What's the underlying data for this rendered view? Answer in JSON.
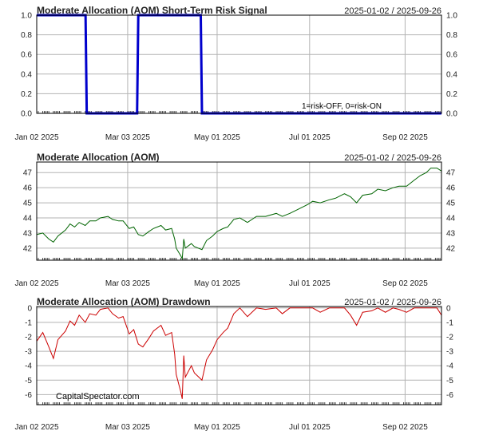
{
  "chart_data": [
    {
      "type": "line",
      "title": "Moderate Allocation (AOM) Short-Term Risk Signal",
      "date_range": "2025-01-02 / 2025-09-26",
      "ylim": [
        0,
        1
      ],
      "y_ticks": [
        0,
        0.2,
        0.4,
        0.6,
        0.8,
        1
      ],
      "y_tick_labels": [
        "0.0",
        "0.2",
        "0.4",
        "0.6",
        "0.8",
        "1.0"
      ],
      "x_tick_labels": [
        "Jan 02 2025",
        "Mar 03 2025",
        "May 01 2025",
        "Jul 01 2025",
        "Sep 02 2025"
      ],
      "x_ticks": [
        "2025-01-02",
        "2025-03-03",
        "2025-05-01",
        "2025-07-01",
        "2025-09-02"
      ],
      "x_range": [
        "2025-01-02",
        "2025-09-26"
      ],
      "annotation": "1=risk-OFF, 0=risk-ON",
      "grid": true,
      "series": [
        {
          "color": "#0000cc",
          "step": true,
          "points": [
            [
              "2025-01-02",
              1
            ],
            [
              "2025-02-04",
              0
            ],
            [
              "2025-03-10",
              1
            ],
            [
              "2025-04-21",
              0
            ],
            [
              "2025-09-26",
              0
            ]
          ]
        }
      ]
    },
    {
      "type": "line",
      "title": "Moderate Allocation (AOM)",
      "date_range": "2025-01-02 / 2025-09-26",
      "ylim": [
        41.2,
        47.7
      ],
      "y_ticks": [
        42,
        43,
        44,
        45,
        46,
        47
      ],
      "y_tick_labels": [
        "42",
        "43",
        "44",
        "45",
        "46",
        "47"
      ],
      "x_tick_labels": [
        "Jan 02 2025",
        "Mar 03 2025",
        "May 01 2025",
        "Jul 01 2025",
        "Sep 02 2025"
      ],
      "x_ticks": [
        "2025-01-02",
        "2025-03-03",
        "2025-05-01",
        "2025-07-01",
        "2025-09-02"
      ],
      "x_range": [
        "2025-01-02",
        "2025-09-26"
      ],
      "grid": true,
      "series": [
        {
          "color": "#006400",
          "points": [
            [
              "2025-01-02",
              42.9
            ],
            [
              "2025-01-06",
              43.0
            ],
            [
              "2025-01-10",
              42.6
            ],
            [
              "2025-01-13",
              42.4
            ],
            [
              "2025-01-16",
              42.8
            ],
            [
              "2025-01-21",
              43.2
            ],
            [
              "2025-01-24",
              43.6
            ],
            [
              "2025-01-27",
              43.4
            ],
            [
              "2025-01-30",
              43.7
            ],
            [
              "2025-02-03",
              43.5
            ],
            [
              "2025-02-06",
              43.8
            ],
            [
              "2025-02-10",
              43.8
            ],
            [
              "2025-02-13",
              44.0
            ],
            [
              "2025-02-18",
              44.1
            ],
            [
              "2025-02-21",
              43.9
            ],
            [
              "2025-02-25",
              43.8
            ],
            [
              "2025-02-28",
              43.8
            ],
            [
              "2025-03-04",
              43.3
            ],
            [
              "2025-03-07",
              43.4
            ],
            [
              "2025-03-10",
              42.9
            ],
            [
              "2025-03-13",
              42.8
            ],
            [
              "2025-03-17",
              43.1
            ],
            [
              "2025-03-20",
              43.3
            ],
            [
              "2025-03-25",
              43.5
            ],
            [
              "2025-03-28",
              43.2
            ],
            [
              "2025-04-01",
              43.3
            ],
            [
              "2025-04-03",
              42.6
            ],
            [
              "2025-04-04",
              42.0
            ],
            [
              "2025-04-07",
              41.5
            ],
            [
              "2025-04-08",
              41.3
            ],
            [
              "2025-04-09",
              42.6
            ],
            [
              "2025-04-10",
              42.0
            ],
            [
              "2025-04-14",
              42.3
            ],
            [
              "2025-04-16",
              42.1
            ],
            [
              "2025-04-21",
              41.9
            ],
            [
              "2025-04-24",
              42.5
            ],
            [
              "2025-04-28",
              42.8
            ],
            [
              "2025-05-01",
              43.1
            ],
            [
              "2025-05-05",
              43.3
            ],
            [
              "2025-05-08",
              43.4
            ],
            [
              "2025-05-12",
              43.9
            ],
            [
              "2025-05-16",
              44.0
            ],
            [
              "2025-05-21",
              43.7
            ],
            [
              "2025-05-27",
              44.1
            ],
            [
              "2025-06-02",
              44.1
            ],
            [
              "2025-06-09",
              44.3
            ],
            [
              "2025-06-13",
              44.1
            ],
            [
              "2025-06-18",
              44.3
            ],
            [
              "2025-06-24",
              44.6
            ],
            [
              "2025-06-30",
              44.9
            ],
            [
              "2025-07-03",
              45.1
            ],
            [
              "2025-07-08",
              45.0
            ],
            [
              "2025-07-14",
              45.2
            ],
            [
              "2025-07-18",
              45.3
            ],
            [
              "2025-07-24",
              45.6
            ],
            [
              "2025-07-28",
              45.4
            ],
            [
              "2025-08-01",
              45.0
            ],
            [
              "2025-08-05",
              45.5
            ],
            [
              "2025-08-11",
              45.6
            ],
            [
              "2025-08-15",
              45.9
            ],
            [
              "2025-08-20",
              45.8
            ],
            [
              "2025-08-25",
              46.0
            ],
            [
              "2025-08-29",
              46.1
            ],
            [
              "2025-09-03",
              46.1
            ],
            [
              "2025-09-08",
              46.5
            ],
            [
              "2025-09-12",
              46.8
            ],
            [
              "2025-09-16",
              47.0
            ],
            [
              "2025-09-19",
              47.3
            ],
            [
              "2025-09-23",
              47.3
            ],
            [
              "2025-09-26",
              47.1
            ]
          ]
        }
      ]
    },
    {
      "type": "line",
      "title": "Moderate Allocation (AOM) Drawdown",
      "date_range": "2025-01-02 / 2025-09-26",
      "ylim": [
        -6.7,
        0.1
      ],
      "y_ticks": [
        -6,
        -5,
        -4,
        -3,
        -2,
        -1,
        0
      ],
      "y_tick_labels": [
        "-6",
        "-5",
        "-4",
        "-3",
        "-2",
        "-1",
        "0"
      ],
      "x_tick_labels": [
        "Jan 02 2025",
        "Mar 03 2025",
        "May 01 2025",
        "Jul 01 2025",
        "Sep 02 2025"
      ],
      "x_ticks": [
        "2025-01-02",
        "2025-03-03",
        "2025-05-01",
        "2025-07-01",
        "2025-09-02"
      ],
      "x_range": [
        "2025-01-02",
        "2025-09-26"
      ],
      "watermark": "CapitalSpectator.com",
      "grid": true,
      "series": [
        {
          "color": "#cc0000",
          "points": [
            [
              "2025-01-02",
              -2.3
            ],
            [
              "2025-01-06",
              -1.7
            ],
            [
              "2025-01-10",
              -2.7
            ],
            [
              "2025-01-13",
              -3.5
            ],
            [
              "2025-01-16",
              -2.2
            ],
            [
              "2025-01-21",
              -1.6
            ],
            [
              "2025-01-24",
              -0.9
            ],
            [
              "2025-01-27",
              -1.2
            ],
            [
              "2025-01-30",
              -0.5
            ],
            [
              "2025-02-03",
              -1.0
            ],
            [
              "2025-02-06",
              -0.4
            ],
            [
              "2025-02-10",
              -0.5
            ],
            [
              "2025-02-13",
              -0.1
            ],
            [
              "2025-02-18",
              0.0
            ],
            [
              "2025-02-21",
              -0.4
            ],
            [
              "2025-02-25",
              -0.7
            ],
            [
              "2025-02-28",
              -0.6
            ],
            [
              "2025-03-04",
              -1.8
            ],
            [
              "2025-03-07",
              -1.5
            ],
            [
              "2025-03-10",
              -2.5
            ],
            [
              "2025-03-13",
              -2.7
            ],
            [
              "2025-03-17",
              -2.1
            ],
            [
              "2025-03-20",
              -1.6
            ],
            [
              "2025-03-25",
              -1.2
            ],
            [
              "2025-03-28",
              -1.9
            ],
            [
              "2025-04-01",
              -1.7
            ],
            [
              "2025-04-03",
              -3.2
            ],
            [
              "2025-04-04",
              -4.6
            ],
            [
              "2025-04-07",
              -5.8
            ],
            [
              "2025-04-08",
              -6.3
            ],
            [
              "2025-04-09",
              -3.3
            ],
            [
              "2025-04-10",
              -4.8
            ],
            [
              "2025-04-14",
              -4.0
            ],
            [
              "2025-04-16",
              -4.5
            ],
            [
              "2025-04-21",
              -5.0
            ],
            [
              "2025-04-24",
              -3.6
            ],
            [
              "2025-04-28",
              -2.9
            ],
            [
              "2025-05-01",
              -2.2
            ],
            [
              "2025-05-05",
              -1.7
            ],
            [
              "2025-05-08",
              -1.4
            ],
            [
              "2025-05-12",
              -0.4
            ],
            [
              "2025-05-16",
              0.0
            ],
            [
              "2025-05-21",
              -0.6
            ],
            [
              "2025-05-27",
              0.0
            ],
            [
              "2025-06-02",
              -0.1
            ],
            [
              "2025-06-09",
              0.0
            ],
            [
              "2025-06-13",
              -0.4
            ],
            [
              "2025-06-18",
              0.0
            ],
            [
              "2025-06-24",
              0.0
            ],
            [
              "2025-06-30",
              0.0
            ],
            [
              "2025-07-03",
              0.0
            ],
            [
              "2025-07-08",
              -0.3
            ],
            [
              "2025-07-14",
              0.0
            ],
            [
              "2025-07-18",
              0.0
            ],
            [
              "2025-07-24",
              0.0
            ],
            [
              "2025-07-28",
              -0.5
            ],
            [
              "2025-08-01",
              -1.2
            ],
            [
              "2025-08-05",
              -0.3
            ],
            [
              "2025-08-11",
              -0.2
            ],
            [
              "2025-08-15",
              0.0
            ],
            [
              "2025-08-20",
              -0.3
            ],
            [
              "2025-08-25",
              0.0
            ],
            [
              "2025-08-29",
              -0.1
            ],
            [
              "2025-09-03",
              -0.3
            ],
            [
              "2025-09-08",
              0.0
            ],
            [
              "2025-09-12",
              0.0
            ],
            [
              "2025-09-16",
              0.0
            ],
            [
              "2025-09-19",
              0.0
            ],
            [
              "2025-09-23",
              0.0
            ],
            [
              "2025-09-26",
              -0.5
            ]
          ]
        }
      ]
    }
  ]
}
